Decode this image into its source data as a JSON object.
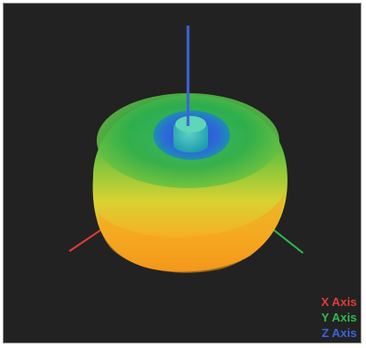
{
  "legend": {
    "x_label": "X Axis",
    "y_label": "Y Axis",
    "z_label": "Z Axis"
  },
  "colors": {
    "background": "#222222",
    "x_axis": "#e03b3b",
    "y_axis": "#2fb84e",
    "z_axis": "#3d63d6"
  }
}
